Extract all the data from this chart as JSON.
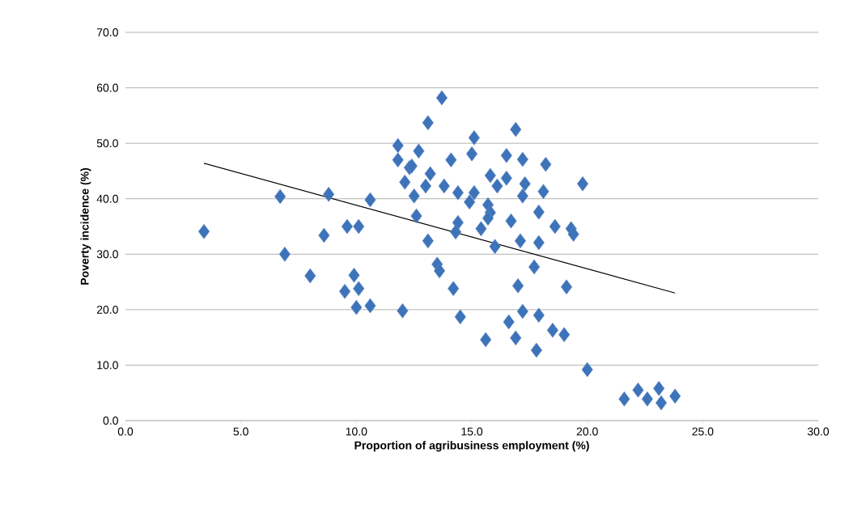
{
  "chart_data": {
    "type": "scatter",
    "xlabel": "Proportion of agribusiness employment (%)",
    "ylabel": "Poverty incidence (%)",
    "xlim": [
      0,
      30
    ],
    "ylim": [
      0,
      70
    ],
    "xticks": [
      {
        "value": 0,
        "label": "0.0"
      },
      {
        "value": 5,
        "label": "5.0"
      },
      {
        "value": 10,
        "label": "10.0"
      },
      {
        "value": 15,
        "label": "15.0"
      },
      {
        "value": 20,
        "label": "20.0"
      },
      {
        "value": 25,
        "label": "25.0"
      },
      {
        "value": 30,
        "label": "30.0"
      }
    ],
    "yticks": [
      {
        "value": 0,
        "label": "0.0"
      },
      {
        "value": 10,
        "label": "10.0"
      },
      {
        "value": 20,
        "label": "20.0"
      },
      {
        "value": 30,
        "label": "30.0"
      },
      {
        "value": 40,
        "label": "40.0"
      },
      {
        "value": 50,
        "label": "50.0"
      },
      {
        "value": 60,
        "label": "60.0"
      },
      {
        "value": 70,
        "label": "70.0"
      }
    ],
    "grid": "y",
    "series": [
      {
        "marker": "diamond",
        "color": "#3d73b9",
        "x": [
          3.4,
          6.7,
          8.6,
          8.8,
          10.6,
          9.6,
          10.1,
          6.9,
          8.0,
          9.9,
          9.5,
          10.1,
          10.0,
          10.6,
          12.0,
          11.8,
          11.8,
          12.3,
          12.1,
          12.5,
          12.6,
          13.7,
          13.1,
          16.9,
          15.1,
          15.0,
          12.7,
          12.4,
          14.1,
          16.5,
          17.2,
          18.2,
          19.8,
          13.2,
          13.0,
          13.8,
          14.4,
          15.1,
          15.8,
          16.5,
          17.3,
          18.1,
          17.2,
          16.1,
          14.9,
          15.7,
          15.8,
          15.7,
          17.9,
          16.7,
          14.4,
          14.3,
          15.4,
          18.6,
          19.3,
          19.4,
          13.1,
          16.0,
          17.1,
          17.9,
          17.7,
          13.5,
          13.6,
          17.0,
          19.1,
          14.2,
          14.5,
          15.6,
          16.6,
          17.2,
          17.9,
          16.9,
          17.8,
          18.5,
          19.0,
          20.0,
          21.6,
          22.2,
          22.6,
          23.1,
          23.2,
          23.8
        ],
        "values": [
          34.1,
          40.4,
          33.4,
          40.8,
          39.8,
          35.0,
          35.0,
          30.0,
          26.1,
          26.2,
          23.3,
          23.8,
          20.4,
          20.7,
          19.8,
          49.6,
          47.0,
          45.6,
          43.0,
          40.5,
          36.9,
          58.2,
          53.7,
          52.5,
          51.0,
          48.1,
          48.6,
          45.9,
          47.0,
          47.8,
          47.1,
          46.2,
          42.7,
          44.5,
          42.3,
          42.3,
          41.1,
          41.1,
          44.2,
          43.7,
          42.7,
          41.3,
          40.5,
          42.3,
          39.4,
          38.9,
          37.5,
          36.5,
          37.6,
          36.0,
          35.7,
          34.0,
          34.6,
          35.0,
          34.6,
          33.6,
          32.4,
          31.4,
          32.4,
          32.1,
          27.7,
          28.2,
          27.0,
          24.3,
          24.1,
          23.8,
          18.7,
          14.6,
          17.8,
          19.7,
          19.0,
          14.9,
          12.7,
          16.3,
          15.5,
          9.2,
          3.9,
          5.5,
          3.9,
          5.8,
          3.2,
          4.4
        ]
      },
      {
        "type": "line",
        "marker": "none",
        "line_style": "solid",
        "color": "#000000",
        "x": [
          3.4,
          23.8
        ],
        "values": [
          46.4,
          23.0
        ]
      }
    ]
  }
}
